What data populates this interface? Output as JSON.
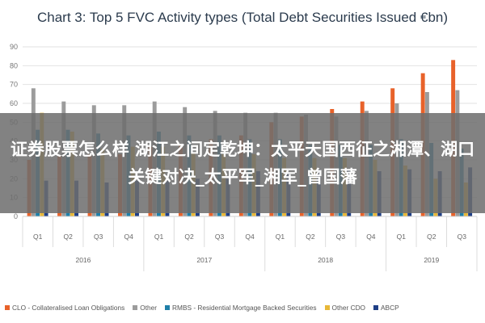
{
  "chart_data": {
    "type": "bar",
    "title": "Chart 3: Top 5 FVC Activity types (Total Debt Securities Issued €bn)",
    "xlabel": "",
    "ylabel": "",
    "ylim": [
      0,
      90
    ],
    "yticks": [
      0,
      10,
      20,
      30,
      40,
      50,
      60,
      70,
      80,
      90
    ],
    "grid": true,
    "legend_position": "bottom",
    "categories": [
      "Q1",
      "Q2",
      "Q3",
      "Q4",
      "Q1",
      "Q2",
      "Q3",
      "Q4",
      "Q1",
      "Q2",
      "Q3",
      "Q4",
      "Q1",
      "Q2",
      "Q3"
    ],
    "years": [
      {
        "label": "2016",
        "count": 4
      },
      {
        "label": "2017",
        "count": 4
      },
      {
        "label": "2018",
        "count": 4
      },
      {
        "label": "2019",
        "count": 3
      }
    ],
    "series": [
      {
        "name": "CLO - Collateralised Loan Obligations",
        "color": "#e8622a",
        "values": [
          30,
          32,
          33,
          33,
          37,
          38,
          41,
          43,
          50,
          53,
          57,
          61,
          68,
          76,
          83
        ]
      },
      {
        "name": "Other",
        "color": "#9c9c9c",
        "values": [
          68,
          61,
          59,
          59,
          61,
          58,
          56,
          55,
          55,
          54,
          53,
          56,
          60,
          66,
          67
        ]
      },
      {
        "name": "RMBS - Residential Mortgage Backed Securities",
        "color": "#1f7fa8",
        "values": [
          46,
          46,
          44,
          43,
          45,
          43,
          43,
          41,
          41,
          38,
          38,
          38,
          41,
          39,
          36
        ]
      },
      {
        "name": "Other CDO",
        "color": "#e8b838",
        "values": [
          55,
          45,
          36,
          37,
          37,
          34,
          33,
          33,
          31,
          31,
          31,
          30,
          27,
          20,
          18
        ]
      },
      {
        "name": "ABCP",
        "color": "#1f3f86",
        "values": [
          19,
          19,
          18,
          19,
          19,
          20,
          20,
          24,
          23,
          25,
          25,
          24,
          25,
          24,
          26
        ]
      }
    ]
  },
  "overlay": {
    "text": "证券股票怎么样 湖江之间定乾坤：太平天国西征之湘潭、湖口关键对决_太平军_湘军_曾国藩"
  }
}
